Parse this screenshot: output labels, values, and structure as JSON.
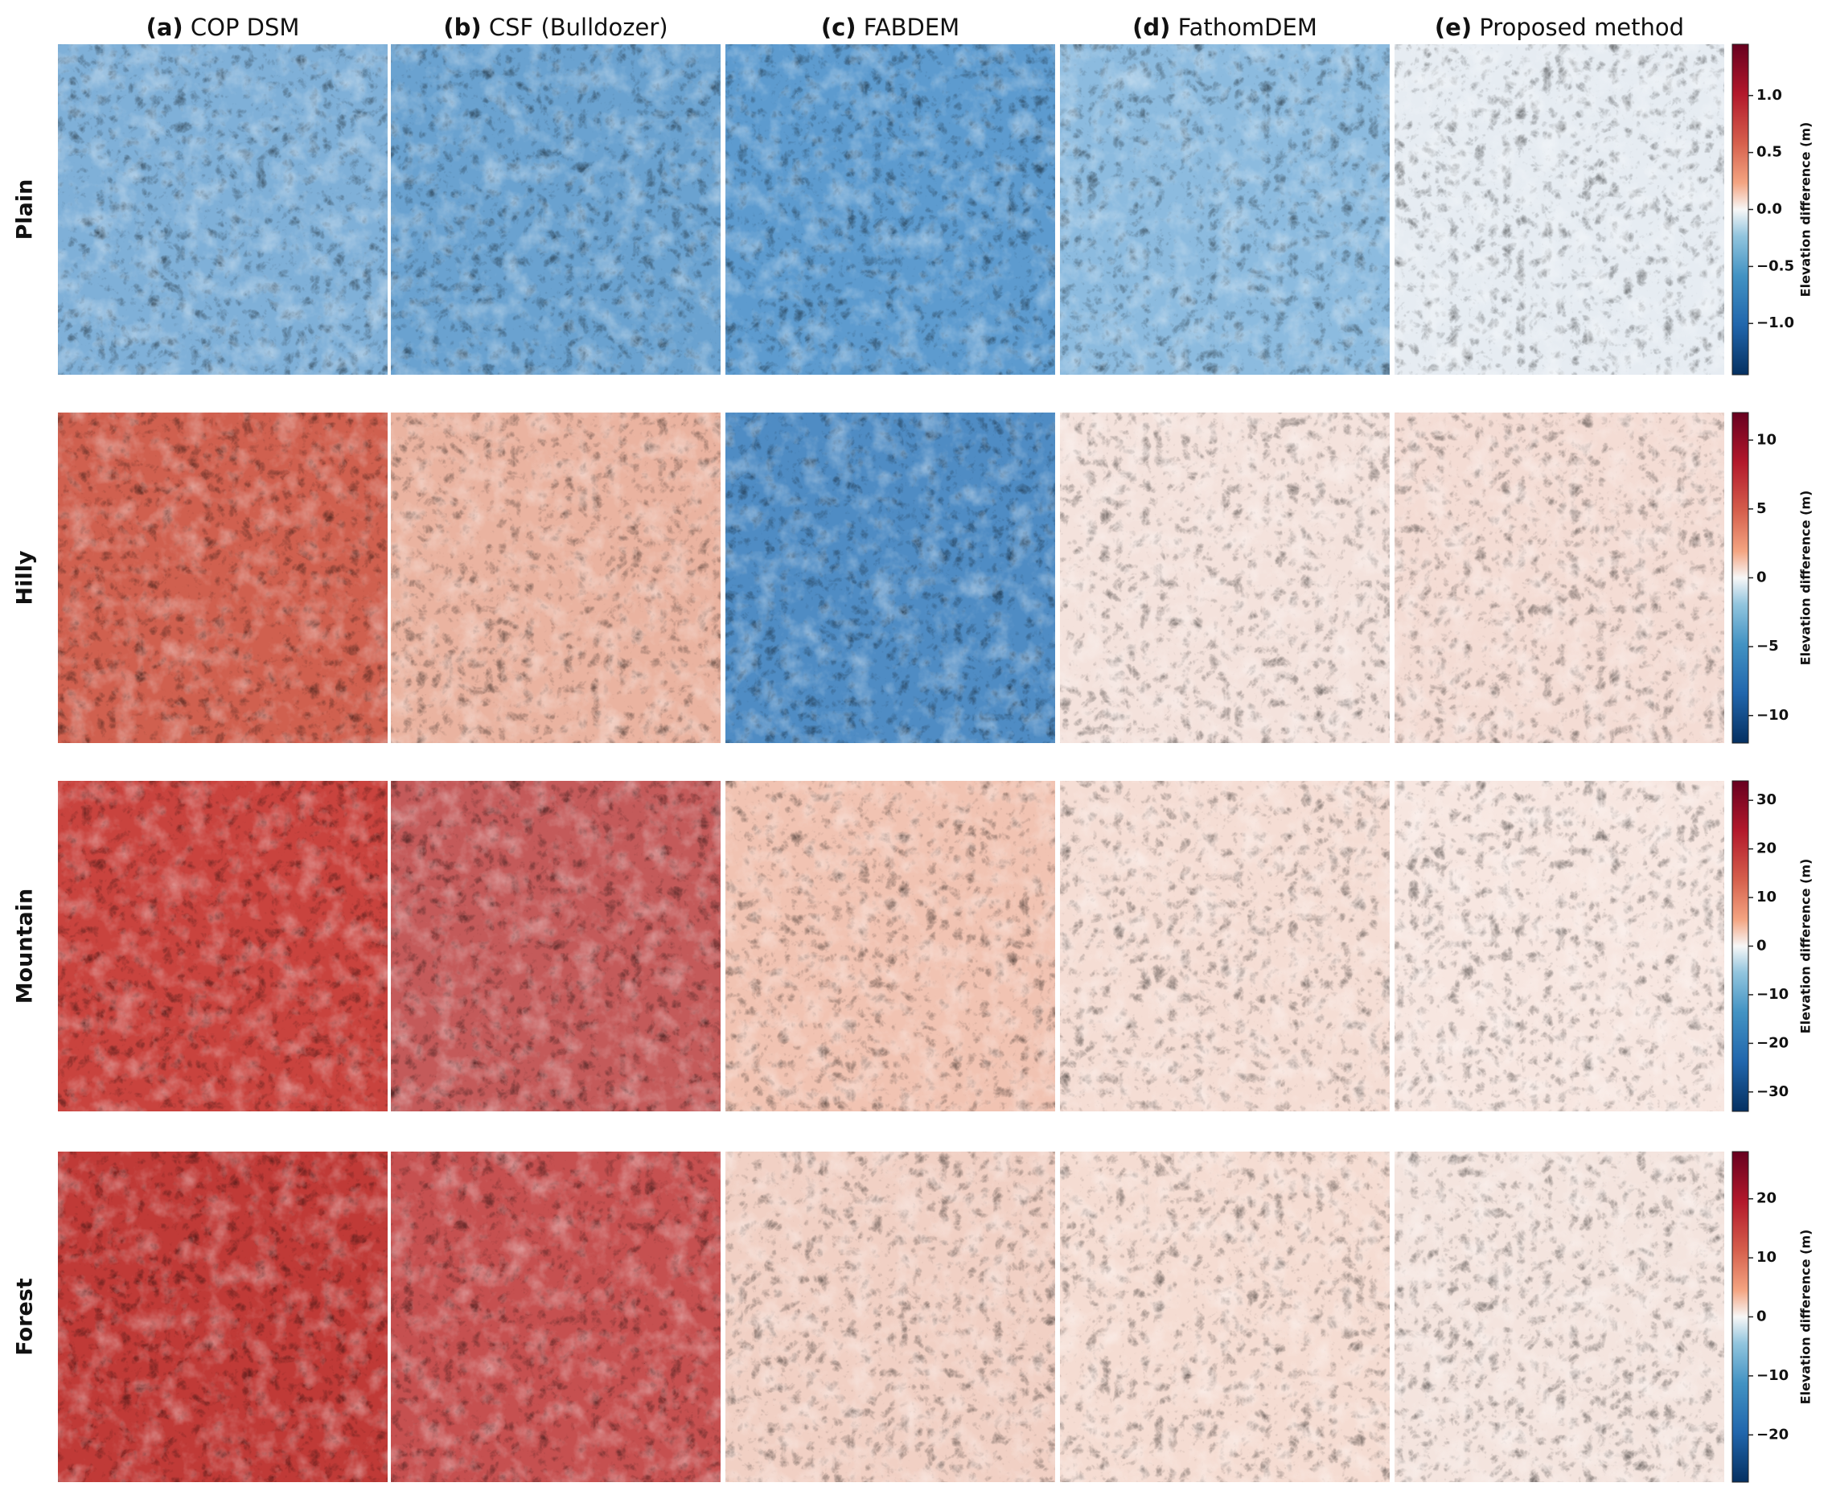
{
  "columns": [
    {
      "letter": "(a)",
      "name": "COP DSM"
    },
    {
      "letter": "(b)",
      "name": "CSF (Bulldozer)"
    },
    {
      "letter": "(c)",
      "name": "FABDEM"
    },
    {
      "letter": "(d)",
      "name": "FathomDEM"
    },
    {
      "letter": "(e)",
      "name": "Proposed method"
    }
  ],
  "rows": [
    {
      "label": "Plain",
      "panel_colors": [
        "#7fb0d8",
        "#6aa2d0",
        "#5d9bcf",
        "#8cbbdf",
        "#e6ecf2"
      ],
      "colorbar": {
        "label": "Elevation difference (m)",
        "lim": [
          -1.45,
          1.45
        ],
        "ticks": [
          {
            "value": -1,
            "label": "−1.0"
          },
          {
            "value": -0.5,
            "label": "−0.5"
          },
          {
            "value": 0,
            "label": "0.0"
          },
          {
            "value": 0.5,
            "label": "0.5"
          },
          {
            "value": 1,
            "label": "1.0"
          }
        ]
      }
    },
    {
      "label": "Hilly",
      "panel_colors": [
        "#d0604f",
        "#eab3a0",
        "#4f8cc4",
        "#f4e2dc",
        "#f4dcd4"
      ],
      "colorbar": {
        "label": "Elevation difference (m)",
        "lim": [
          -12,
          12
        ],
        "ticks": [
          {
            "value": -10,
            "label": "−10"
          },
          {
            "value": -5,
            "label": "−5"
          },
          0,
          5,
          10
        ]
      }
    },
    {
      "label": "Mountain",
      "panel_colors": [
        "#c9433e",
        "#c45a5a",
        "#f1c3b2",
        "#f5ddd4",
        "#f7e6e0"
      ],
      "colorbar": {
        "label": "Elevation difference (m)",
        "lim": [
          -34,
          34
        ],
        "ticks": [
          {
            "value": -30,
            "label": "−30"
          },
          {
            "value": -20,
            "label": "−20"
          },
          {
            "value": -10,
            "label": "−10"
          },
          0,
          10,
          20,
          30
        ]
      }
    },
    {
      "label": "Forest",
      "panel_colors": [
        "#c03a37",
        "#c65050",
        "#f1d0c4",
        "#f5dcd2",
        "#f4e4de"
      ],
      "colorbar": {
        "label": "Elevation difference (m)",
        "lim": [
          -28,
          28
        ],
        "ticks": [
          {
            "value": -20,
            "label": "−20"
          },
          {
            "value": -10,
            "label": "−10"
          },
          0,
          10,
          20
        ]
      }
    }
  ]
}
